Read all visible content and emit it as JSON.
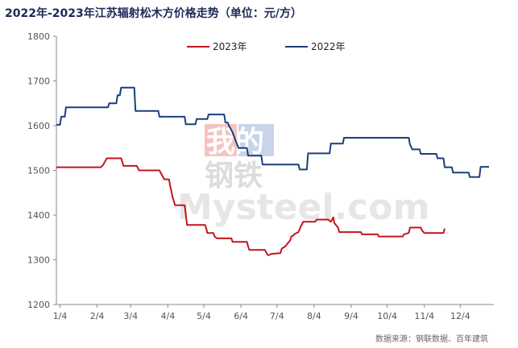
{
  "chart_data": {
    "type": "line",
    "title": "2022年-2023年江苏辐射松木方价格走势（单位：元/方）",
    "xlabel": "",
    "ylabel": "",
    "ylim": [
      1200,
      1800
    ],
    "yticks": [
      1200,
      1300,
      1400,
      1500,
      1600,
      1700,
      1800
    ],
    "xlim": [
      1,
      366
    ],
    "xticks": [
      {
        "label": "1/4",
        "day": 4
      },
      {
        "label": "2/4",
        "day": 35
      },
      {
        "label": "3/4",
        "day": 63
      },
      {
        "label": "4/4",
        "day": 94
      },
      {
        "label": "5/4",
        "day": 124
      },
      {
        "label": "6/4",
        "day": 155
      },
      {
        "label": "7/4",
        "day": 185
      },
      {
        "label": "8/4",
        "day": 216
      },
      {
        "label": "9/4",
        "day": 247
      },
      {
        "label": "10/4",
        "day": 277
      },
      {
        "label": "11/4",
        "day": 308
      },
      {
        "label": "12/4",
        "day": 338
      }
    ],
    "grid": false,
    "legend_position": "top-center",
    "series": [
      {
        "name": "2023年",
        "color": "#c0161f",
        "points": [
          [
            1,
            1507
          ],
          [
            38,
            1507
          ],
          [
            40,
            1512
          ],
          [
            42,
            1522
          ],
          [
            43,
            1527
          ],
          [
            55,
            1527
          ],
          [
            56,
            1519
          ],
          [
            57,
            1510
          ],
          [
            68,
            1510
          ],
          [
            70,
            1500
          ],
          [
            87,
            1500
          ],
          [
            89,
            1490
          ],
          [
            91,
            1480
          ],
          [
            95,
            1480
          ],
          [
            96,
            1465
          ],
          [
            98,
            1440
          ],
          [
            100,
            1422
          ],
          [
            108,
            1422
          ],
          [
            109,
            1400
          ],
          [
            110,
            1378
          ],
          [
            125,
            1378
          ],
          [
            126,
            1370
          ],
          [
            127,
            1360
          ],
          [
            132,
            1360
          ],
          [
            133,
            1352
          ],
          [
            135,
            1348
          ],
          [
            147,
            1348
          ],
          [
            148,
            1340
          ],
          [
            160,
            1340
          ],
          [
            161,
            1330
          ],
          [
            162,
            1322
          ],
          [
            175,
            1322
          ],
          [
            177,
            1312
          ],
          [
            178,
            1310
          ],
          [
            180,
            1313
          ],
          [
            188,
            1315
          ],
          [
            189,
            1325
          ],
          [
            192,
            1330
          ],
          [
            195,
            1340
          ],
          [
            196,
            1343
          ],
          [
            197,
            1352
          ],
          [
            199,
            1355
          ],
          [
            200,
            1358
          ],
          [
            203,
            1362
          ],
          [
            205,
            1375
          ],
          [
            207,
            1385
          ],
          [
            217,
            1385
          ],
          [
            218,
            1390
          ],
          [
            228,
            1390
          ],
          [
            229,
            1387
          ],
          [
            230,
            1385
          ],
          [
            232,
            1395
          ],
          [
            233,
            1382
          ],
          [
            236,
            1372
          ],
          [
            237,
            1362
          ],
          [
            255,
            1362
          ],
          [
            256,
            1357
          ],
          [
            269,
            1357
          ],
          [
            270,
            1352
          ],
          [
            290,
            1352
          ],
          [
            291,
            1357
          ],
          [
            295,
            1360
          ],
          [
            296,
            1372
          ],
          [
            305,
            1372
          ],
          [
            306,
            1366
          ],
          [
            308,
            1360
          ],
          [
            324,
            1360
          ],
          [
            325,
            1370
          ]
        ]
      },
      {
        "name": "2022年",
        "color": "#1a3f7c",
        "points": [
          [
            1,
            1602
          ],
          [
            4,
            1602
          ],
          [
            5,
            1620
          ],
          [
            8,
            1620
          ],
          [
            9,
            1641
          ],
          [
            44,
            1641
          ],
          [
            45,
            1650
          ],
          [
            51,
            1650
          ],
          [
            52,
            1668
          ],
          [
            54,
            1668
          ],
          [
            55,
            1685
          ],
          [
            66,
            1685
          ],
          [
            67,
            1633
          ],
          [
            86,
            1633
          ],
          [
            87,
            1620
          ],
          [
            108,
            1620
          ],
          [
            109,
            1603
          ],
          [
            117,
            1603
          ],
          [
            118,
            1615
          ],
          [
            127,
            1615
          ],
          [
            128,
            1625
          ],
          [
            141,
            1625
          ],
          [
            142,
            1607
          ],
          [
            144,
            1607
          ],
          [
            145,
            1600
          ],
          [
            148,
            1585
          ],
          [
            150,
            1570
          ],
          [
            153,
            1550
          ],
          [
            160,
            1550
          ],
          [
            161,
            1533
          ],
          [
            172,
            1533
          ],
          [
            173,
            1513
          ],
          [
            203,
            1513
          ],
          [
            204,
            1502
          ],
          [
            210,
            1502
          ],
          [
            211,
            1538
          ],
          [
            229,
            1538
          ],
          [
            230,
            1560
          ],
          [
            240,
            1560
          ],
          [
            241,
            1573
          ],
          [
            295,
            1573
          ],
          [
            296,
            1558
          ],
          [
            298,
            1547
          ],
          [
            304,
            1547
          ],
          [
            305,
            1537
          ],
          [
            318,
            1537
          ],
          [
            319,
            1527
          ],
          [
            324,
            1527
          ],
          [
            325,
            1507
          ],
          [
            331,
            1507
          ],
          [
            332,
            1495
          ],
          [
            345,
            1495
          ],
          [
            346,
            1485
          ],
          [
            354,
            1485
          ],
          [
            355,
            1508
          ],
          [
            362,
            1508
          ]
        ]
      }
    ]
  },
  "source_note": "数据来源：钢联数据、百年建筑",
  "watermark": {
    "line1": "我的",
    "line2": "钢铁",
    "line3": "Mysteel.com"
  }
}
